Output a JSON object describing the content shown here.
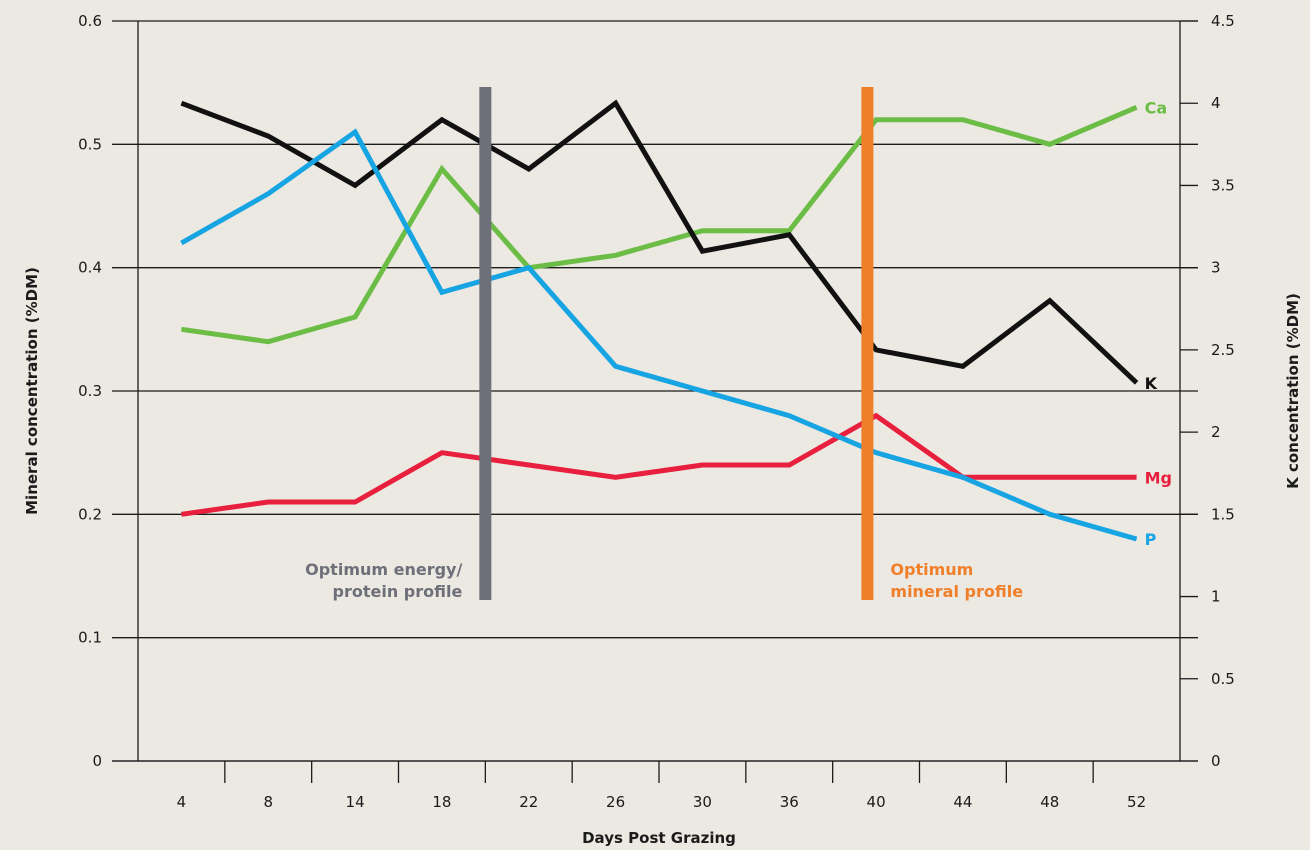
{
  "chart_data": {
    "type": "line",
    "xlabel": "Days Post Grazing",
    "ylabel_left": "Mineral concentration (%DM)",
    "ylabel_right": "K concentration (%DM)",
    "categories": [
      "4",
      "8",
      "14",
      "18",
      "22",
      "26",
      "30",
      "36",
      "40",
      "44",
      "48",
      "52"
    ],
    "ylim_left": [
      0,
      0.6
    ],
    "ylim_right": [
      0,
      4.5
    ],
    "yticks_left": [
      "0",
      "0.1",
      "0.2",
      "0.3",
      "0.4",
      "0.5",
      "0.6"
    ],
    "yticks_right": [
      "0",
      "0.5",
      "1",
      "1.5",
      "2",
      "2.5",
      "3",
      "3.5",
      "4",
      "4.5"
    ],
    "grid": "horizontal",
    "series": [
      {
        "name": "Ca",
        "axis": "left",
        "color": "#6cbd45",
        "values": [
          0.35,
          0.34,
          0.36,
          0.48,
          0.4,
          0.41,
          0.43,
          0.43,
          0.52,
          0.52,
          0.5,
          0.53
        ]
      },
      {
        "name": "K",
        "axis": "right",
        "color": "#111111",
        "values": [
          4.0,
          3.8,
          3.5,
          3.9,
          3.6,
          4.0,
          3.1,
          3.2,
          2.5,
          2.4,
          2.8,
          2.3
        ]
      },
      {
        "name": "Mg",
        "axis": "left",
        "color": "#e8203d",
        "values": [
          0.2,
          0.21,
          0.21,
          0.25,
          0.24,
          0.23,
          0.24,
          0.24,
          0.28,
          0.23,
          0.23,
          0.23
        ]
      },
      {
        "name": "P",
        "axis": "left",
        "color": "#16a4e3",
        "values": [
          0.42,
          0.46,
          0.51,
          0.38,
          0.4,
          0.32,
          0.3,
          0.28,
          0.25,
          0.23,
          0.2,
          0.18
        ]
      }
    ],
    "annotations": [
      {
        "text": [
          "Optimum energy/",
          "protein profile"
        ],
        "color": "#6d7079",
        "at_category": "18",
        "offset": 0.5
      },
      {
        "text": [
          "Optimum",
          "mineral profile"
        ],
        "color": "#f07f2a",
        "at_category": "40",
        "offset": -0.1
      }
    ]
  }
}
